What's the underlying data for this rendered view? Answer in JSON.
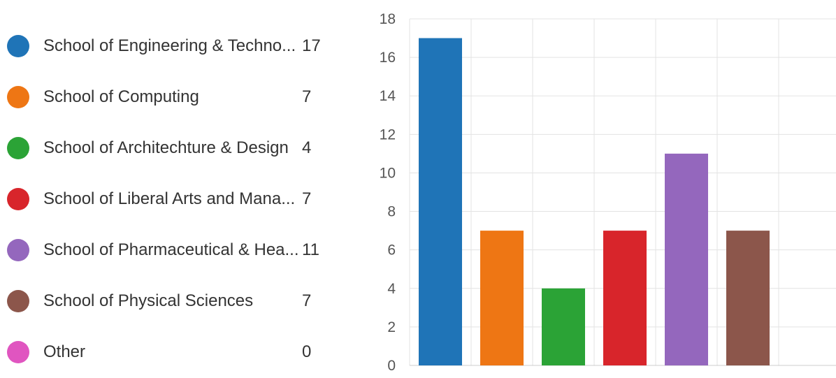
{
  "legend": {
    "items": [
      {
        "label": "School of Engineering & Techno...",
        "count": "17",
        "color": "#1f74b7"
      },
      {
        "label": "School of Computing",
        "count": "7",
        "color": "#ee7614"
      },
      {
        "label": "School of Architechture & Design",
        "count": "4",
        "color": "#2ba336"
      },
      {
        "label": "School of Liberal Arts and Mana...",
        "count": "7",
        "color": "#d8252b"
      },
      {
        "label": "School of Pharmaceutical & Hea...",
        "count": "11",
        "color": "#9467bd"
      },
      {
        "label": "School of Physical Sciences",
        "count": "7",
        "color": "#8c564b"
      },
      {
        "label": "Other",
        "count": "0",
        "color": "#e055c0"
      }
    ]
  },
  "chart_data": {
    "type": "bar",
    "categories": [
      "School of Engineering & Techno...",
      "School of Computing",
      "School of Architechture & Design",
      "School of Liberal Arts and Mana...",
      "School of Pharmaceutical & Hea...",
      "School of Physical Sciences",
      "Other"
    ],
    "values": [
      17,
      7,
      4,
      7,
      11,
      7,
      0
    ],
    "colors": [
      "#1f74b7",
      "#ee7614",
      "#2ba336",
      "#d8252b",
      "#9467bd",
      "#8c564b",
      "#e055c0"
    ],
    "ylim": [
      0,
      18
    ],
    "yticks": [
      "0",
      "2",
      "4",
      "6",
      "8",
      "10",
      "12",
      "14",
      "16",
      "18"
    ],
    "title": "",
    "xlabel": "",
    "ylabel": "",
    "grid": true,
    "legend_placement": "left"
  }
}
